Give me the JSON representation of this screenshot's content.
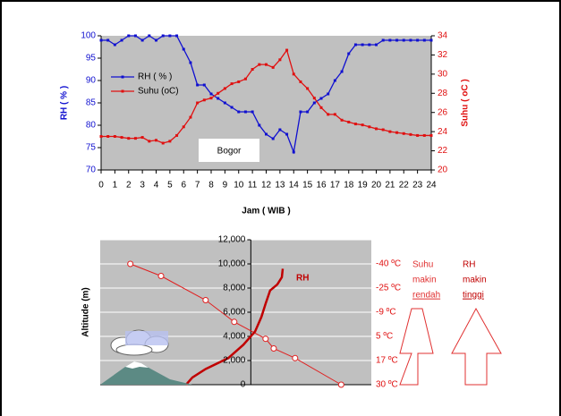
{
  "chart_data": [
    {
      "type": "line",
      "annotation": "Bogor",
      "x_label": "Jam ( WIB )",
      "y_label": "RH ( % )",
      "y2_label": "Suhu ( oC )",
      "x": [
        0,
        0.5,
        1,
        1.5,
        2,
        2.5,
        3,
        3.5,
        4,
        4.5,
        5,
        5.5,
        6,
        6.5,
        7,
        7.5,
        8,
        8.5,
        9,
        9.5,
        10,
        10.5,
        11,
        11.5,
        12,
        12.5,
        13,
        13.5,
        14,
        14.5,
        15,
        15.5,
        16,
        16.5,
        17,
        17.5,
        18,
        18.5,
        19,
        19.5,
        20,
        20.5,
        21,
        21.5,
        22,
        22.5,
        23,
        23.5,
        24
      ],
      "series": [
        {
          "name": "RH ( % )",
          "color": "#1010d0",
          "marker": "square",
          "axis": "y",
          "values": [
            99,
            99,
            98,
            99,
            100,
            100,
            99,
            100,
            99,
            100,
            100,
            100,
            97,
            94,
            89,
            89,
            87,
            86,
            85,
            84,
            83,
            83,
            83,
            80,
            78,
            77,
            79,
            78,
            74,
            83,
            83,
            85,
            86,
            87,
            90,
            92,
            96,
            98,
            98,
            98,
            98,
            99,
            99,
            99,
            99,
            99,
            99,
            99,
            99
          ]
        },
        {
          "name": "Suhu (oC)",
          "color": "#e01010",
          "marker": "square",
          "axis": "y2",
          "values": [
            23.5,
            23.5,
            23.5,
            23.4,
            23.3,
            23.3,
            23.4,
            23,
            23.1,
            22.8,
            23,
            23.6,
            24.5,
            25.5,
            27,
            27.3,
            27.5,
            28,
            28.5,
            29,
            29.2,
            29.5,
            30.5,
            31,
            31,
            30.7,
            31.5,
            32.5,
            30,
            29.2,
            28.5,
            27.5,
            26.5,
            25.8,
            25.8,
            25.2,
            25,
            24.8,
            24.7,
            24.5,
            24.3,
            24.2,
            24,
            23.9,
            23.8,
            23.7,
            23.6,
            23.6,
            23.6
          ]
        }
      ],
      "xlim": [
        0,
        24
      ],
      "xticks": [
        0,
        1,
        2,
        3,
        4,
        5,
        6,
        7,
        8,
        9,
        10,
        11,
        12,
        13,
        14,
        15,
        16,
        17,
        18,
        19,
        20,
        21,
        22,
        23,
        24
      ],
      "ylim": [
        70,
        100
      ],
      "yticks": [
        70,
        75,
        80,
        85,
        90,
        95,
        100
      ],
      "y2lim": [
        20,
        34
      ],
      "y2ticks": [
        20,
        22,
        24,
        26,
        28,
        30,
        32,
        34
      ],
      "legend": "upper left",
      "background": "#c0c0c0"
    },
    {
      "type": "line",
      "y_label": "Altitude (m)",
      "series": [
        {
          "color": "#e02020",
          "marker": "circle",
          "line_width": 1,
          "x": [
            -40,
            -29.8,
            -15,
            -5.5,
            4.9,
            7.6,
            14.7,
            30
          ],
          "values": [
            10000,
            9000,
            7000,
            5200,
            3800,
            3000,
            2200,
            0
          ]
        },
        {
          "name": "RH",
          "color": "#c00000",
          "marker": "none",
          "line_width": 2.5,
          "x": [
            -21.5,
            -19.4,
            -15,
            -7.5,
            -2.5,
            1.4,
            3.5,
            4.9,
            6.4,
            8.8,
            10.3,
            10.6
          ],
          "values": [
            0,
            600,
            1300,
            2200,
            3300,
            4400,
            5600,
            6700,
            7800,
            8300,
            8900,
            9600
          ]
        }
      ],
      "xlim": [
        -50,
        40
      ],
      "ylim": [
        0,
        12000
      ],
      "yticks": [
        0,
        {
          "value": 2000,
          "label": "2,000"
        },
        {
          "value": 4000,
          "label": "4,000"
        },
        {
          "value": 6000,
          "label": "6,000"
        },
        {
          "value": 8000,
          "label": "8,000"
        },
        {
          "value": 10000,
          "label": "10,000"
        },
        {
          "value": 12000,
          "label": "12,000"
        }
      ],
      "y2lim": [
        0,
        12000
      ],
      "y2ticks": [
        {
          "value": 10000,
          "label": "-40 ºC"
        },
        {
          "value": 8000,
          "label": "-25 ºC"
        },
        {
          "value": 6000,
          "label": "-9 ºC"
        },
        {
          "value": 4000,
          "label": "5 ºC"
        },
        {
          "value": 2000,
          "label": "17 ºC"
        },
        {
          "value": 0,
          "label": "30 ºC"
        }
      ],
      "notes": [
        [
          "Suhu",
          "makin",
          "rendah"
        ],
        [
          "RH",
          "makin",
          "tinggi"
        ]
      ],
      "grid": true,
      "background": "#c0c0c0"
    }
  ]
}
